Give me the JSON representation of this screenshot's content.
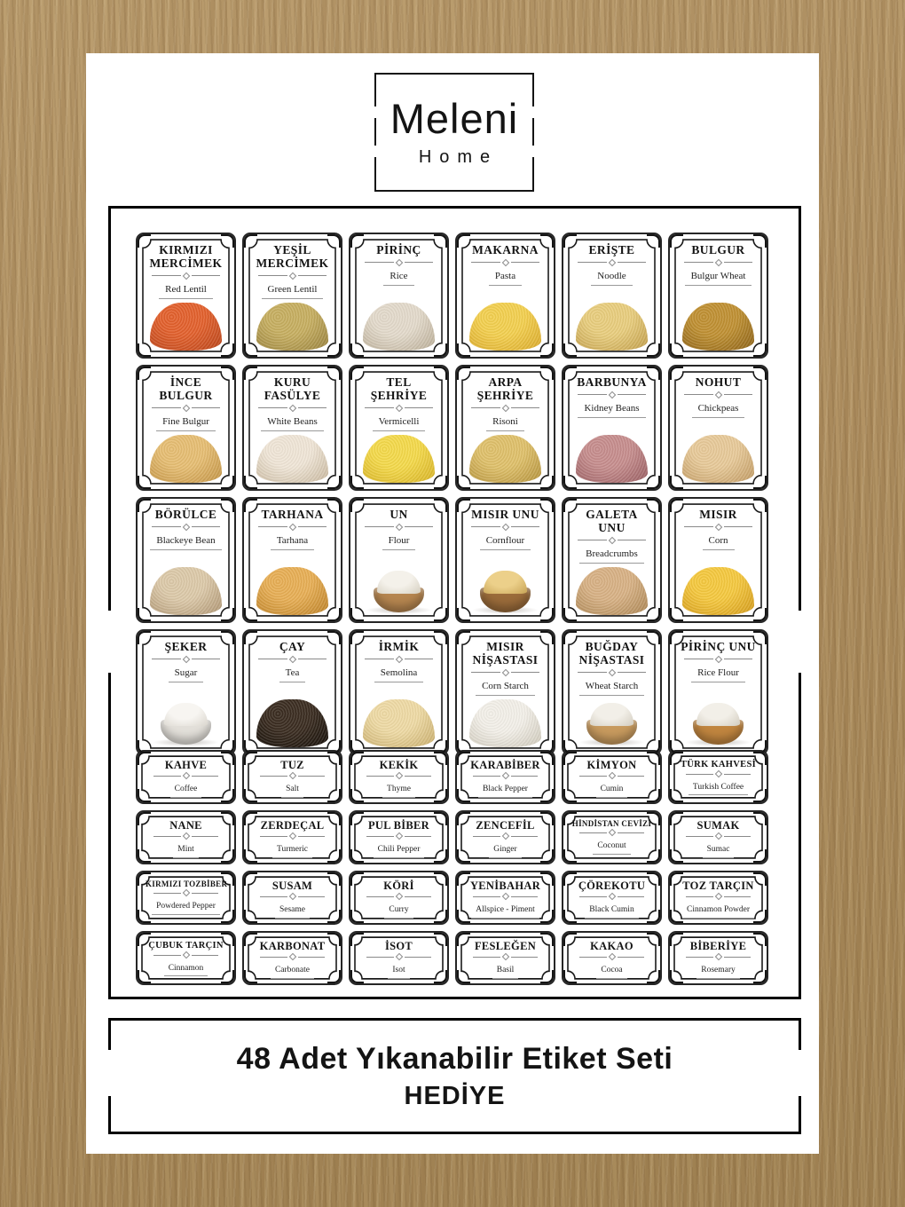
{
  "brand": {
    "name": "Meleni",
    "sub": "Home"
  },
  "footer": {
    "line1": "48 Adet Yıkanabilir Etiket Seti",
    "line2": "HEDİYE"
  },
  "colors": {
    "background_kraft": "#a98a5d",
    "panel": "#ffffff",
    "ink": "#141414"
  },
  "big_labels": [
    {
      "tr": "KIRMIZI MERCİMEK",
      "en": "Red Lentil",
      "shape": "mound",
      "c1": "#e2602c",
      "c2": "#b8441a"
    },
    {
      "tr": "YEŞİL MERCİMEK",
      "en": "Green Lentil",
      "shape": "mound",
      "c1": "#c6ae60",
      "c2": "#97803c"
    },
    {
      "tr": "PİRİNÇ",
      "en": "Rice",
      "shape": "mound",
      "c1": "#e3dacb",
      "c2": "#b8ab94"
    },
    {
      "tr": "MAKARNA",
      "en": "Pasta",
      "shape": "mound",
      "c1": "#f3cf4e",
      "c2": "#d9a82a"
    },
    {
      "tr": "ERİŞTE",
      "en": "Noodle",
      "shape": "mound",
      "c1": "#e8cd7d",
      "c2": "#c09c48"
    },
    {
      "tr": "BULGUR",
      "en": "Bulgur Wheat",
      "shape": "mound",
      "c1": "#bf9032",
      "c2": "#8a6016"
    },
    {
      "tr": "İNCE BULGUR",
      "en": "Fine Bulgur",
      "shape": "mound",
      "c1": "#e6bd72",
      "c2": "#c19243"
    },
    {
      "tr": "KURU FASÜLYE",
      "en": "White Beans",
      "shape": "mound",
      "c1": "#efe5d6",
      "c2": "#c7b69c"
    },
    {
      "tr": "TEL ŞEHRİYE",
      "en": "Vermicelli",
      "shape": "mound",
      "c1": "#f4d94a",
      "c2": "#d6b124"
    },
    {
      "tr": "ARPA ŞEHRİYE",
      "en": "Risoni",
      "shape": "mound",
      "c1": "#dfc06a",
      "c2": "#b2903a"
    },
    {
      "tr": "BARBUNYA",
      "en": "Kidney Beans",
      "shape": "mound",
      "c1": "#c68d8d",
      "c2": "#975c60"
    },
    {
      "tr": "NOHUT",
      "en": "Chickpeas",
      "shape": "mound",
      "c1": "#e7c998",
      "c2": "#bf9860"
    },
    {
      "tr": "BÖRÜLCE",
      "en": "Blackeye Bean",
      "shape": "mound",
      "c1": "#dcc9a9",
      "c2": "#ad9370"
    },
    {
      "tr": "TARHANA",
      "en": "Tarhana",
      "shape": "mound",
      "c1": "#e7ae54",
      "c2": "#bb8026"
    },
    {
      "tr": "UN",
      "en": "Flour",
      "shape": "bowl",
      "c1": "#f4f1ea",
      "c2": "#d5cfc0",
      "c3": "#b5854f"
    },
    {
      "tr": "MISIR UNU",
      "en": "Cornflour",
      "shape": "bowl",
      "c1": "#ecd08a",
      "c2": "#c7a356",
      "c3": "#9a6b3a"
    },
    {
      "tr": "GALETA UNU",
      "en": "Breadcrumbs",
      "shape": "mound",
      "c1": "#d7b184",
      "c2": "#aa8452"
    },
    {
      "tr": "MISIR",
      "en": "Corn",
      "shape": "mound",
      "c1": "#f5c83e",
      "c2": "#d2991a"
    },
    {
      "tr": "ŞEKER",
      "en": "Sugar",
      "shape": "bowl",
      "c1": "#f7f5f1",
      "c2": "#d9d5cd",
      "c3": "#e2dfd9"
    },
    {
      "tr": "ÇAY",
      "en": "Tea",
      "shape": "mound",
      "c1": "#3a2c20",
      "c2": "#140e08"
    },
    {
      "tr": "İRMİK",
      "en": "Semolina",
      "shape": "mound",
      "c1": "#eedaa4",
      "c2": "#c8ac6a"
    },
    {
      "tr": "MISIR NİŞASTASI",
      "en": "Corn Starch",
      "shape": "mound",
      "c1": "#f2efe8",
      "c2": "#cdc7b8"
    },
    {
      "tr": "BUĞDAY NİŞASTASI",
      "en": "Wheat Starch",
      "shape": "bowl",
      "c1": "#f2efe8",
      "c2": "#d2ccbf",
      "c3": "#c79a5e"
    },
    {
      "tr": "PİRİNÇ UNU",
      "en": "Rice Flour",
      "shape": "bowl",
      "c1": "#f2efe8",
      "c2": "#d2ccbf",
      "c3": "#c0853f"
    }
  ],
  "small_labels": [
    {
      "tr": "KAHVE",
      "en": "Coffee"
    },
    {
      "tr": "TUZ",
      "en": "Salt"
    },
    {
      "tr": "KEKİK",
      "en": "Thyme"
    },
    {
      "tr": "KARABİBER",
      "en": "Black Pepper"
    },
    {
      "tr": "KİMYON",
      "en": "Cumin"
    },
    {
      "tr": "TÜRK KAHVESİ",
      "en": "Turkish Coffee"
    },
    {
      "tr": "NANE",
      "en": "Mint"
    },
    {
      "tr": "ZERDEÇAL",
      "en": "Turmeric"
    },
    {
      "tr": "PUL BİBER",
      "en": "Chili Pepper"
    },
    {
      "tr": "ZENCEFİL",
      "en": "Ginger"
    },
    {
      "tr": "HİNDİSTAN CEVİZİ",
      "en": "Coconut"
    },
    {
      "tr": "SUMAK",
      "en": "Sumac"
    },
    {
      "tr": "KIRMIZI TOZBİBER",
      "en": "Powdered Pepper"
    },
    {
      "tr": "SUSAM",
      "en": "Sesame"
    },
    {
      "tr": "KÖRİ",
      "en": "Curry"
    },
    {
      "tr": "YENİBAHAR",
      "en": "Allspice - Piment"
    },
    {
      "tr": "ÇÖREKOTU",
      "en": "Black Cumin"
    },
    {
      "tr": "TOZ TARÇIN",
      "en": "Cinnamon Powder"
    },
    {
      "tr": "ÇUBUK TARÇIN",
      "en": "Cinnamon"
    },
    {
      "tr": "KARBONAT",
      "en": "Carbonate"
    },
    {
      "tr": "İSOT",
      "en": "Isot"
    },
    {
      "tr": "FESLEĞEN",
      "en": "Basil"
    },
    {
      "tr": "KAKAO",
      "en": "Cocoa"
    },
    {
      "tr": "BİBERİYE",
      "en": "Rosemary"
    }
  ]
}
